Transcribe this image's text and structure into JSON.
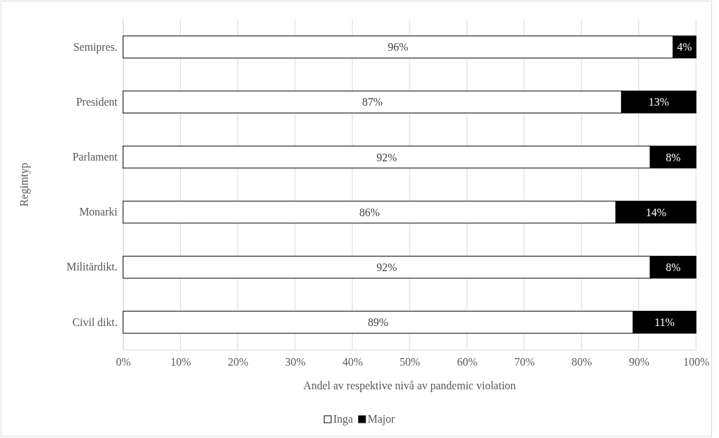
{
  "chart_data": {
    "type": "bar",
    "orientation": "horizontal",
    "stacked": true,
    "xlabel": "Andel av respektive nivå av pandemic violation",
    "ylabel": "Regimtyp",
    "categories": [
      "Semipres.",
      "President",
      "Parlament",
      "Monarki",
      "Militärdikt.",
      "Civil dikt."
    ],
    "series": [
      {
        "name": "Inga",
        "color": "#ffffff",
        "values": [
          96,
          87,
          92,
          86,
          92,
          89
        ],
        "value_labels": [
          "96%",
          "87%",
          "92%",
          "86%",
          "92%",
          "89%"
        ]
      },
      {
        "name": "Major",
        "color": "#000000",
        "values": [
          4,
          13,
          8,
          14,
          8,
          11
        ],
        "value_labels": [
          "4%",
          "13%",
          "8%",
          "14%",
          "8%",
          "11%"
        ]
      }
    ],
    "xlim": [
      0,
      100
    ],
    "xticks": [
      {
        "value": 0,
        "label": "0%"
      },
      {
        "value": 10,
        "label": "10%"
      },
      {
        "value": 20,
        "label": "20%"
      },
      {
        "value": 30,
        "label": "30%"
      },
      {
        "value": 40,
        "label": "40%"
      },
      {
        "value": 50,
        "label": "50%"
      },
      {
        "value": 60,
        "label": "60%"
      },
      {
        "value": 70,
        "label": "70%"
      },
      {
        "value": 80,
        "label": "80%"
      },
      {
        "value": 90,
        "label": "90%"
      },
      {
        "value": 100,
        "label": "100%"
      }
    ],
    "grid": "x",
    "legend": "bottom"
  }
}
